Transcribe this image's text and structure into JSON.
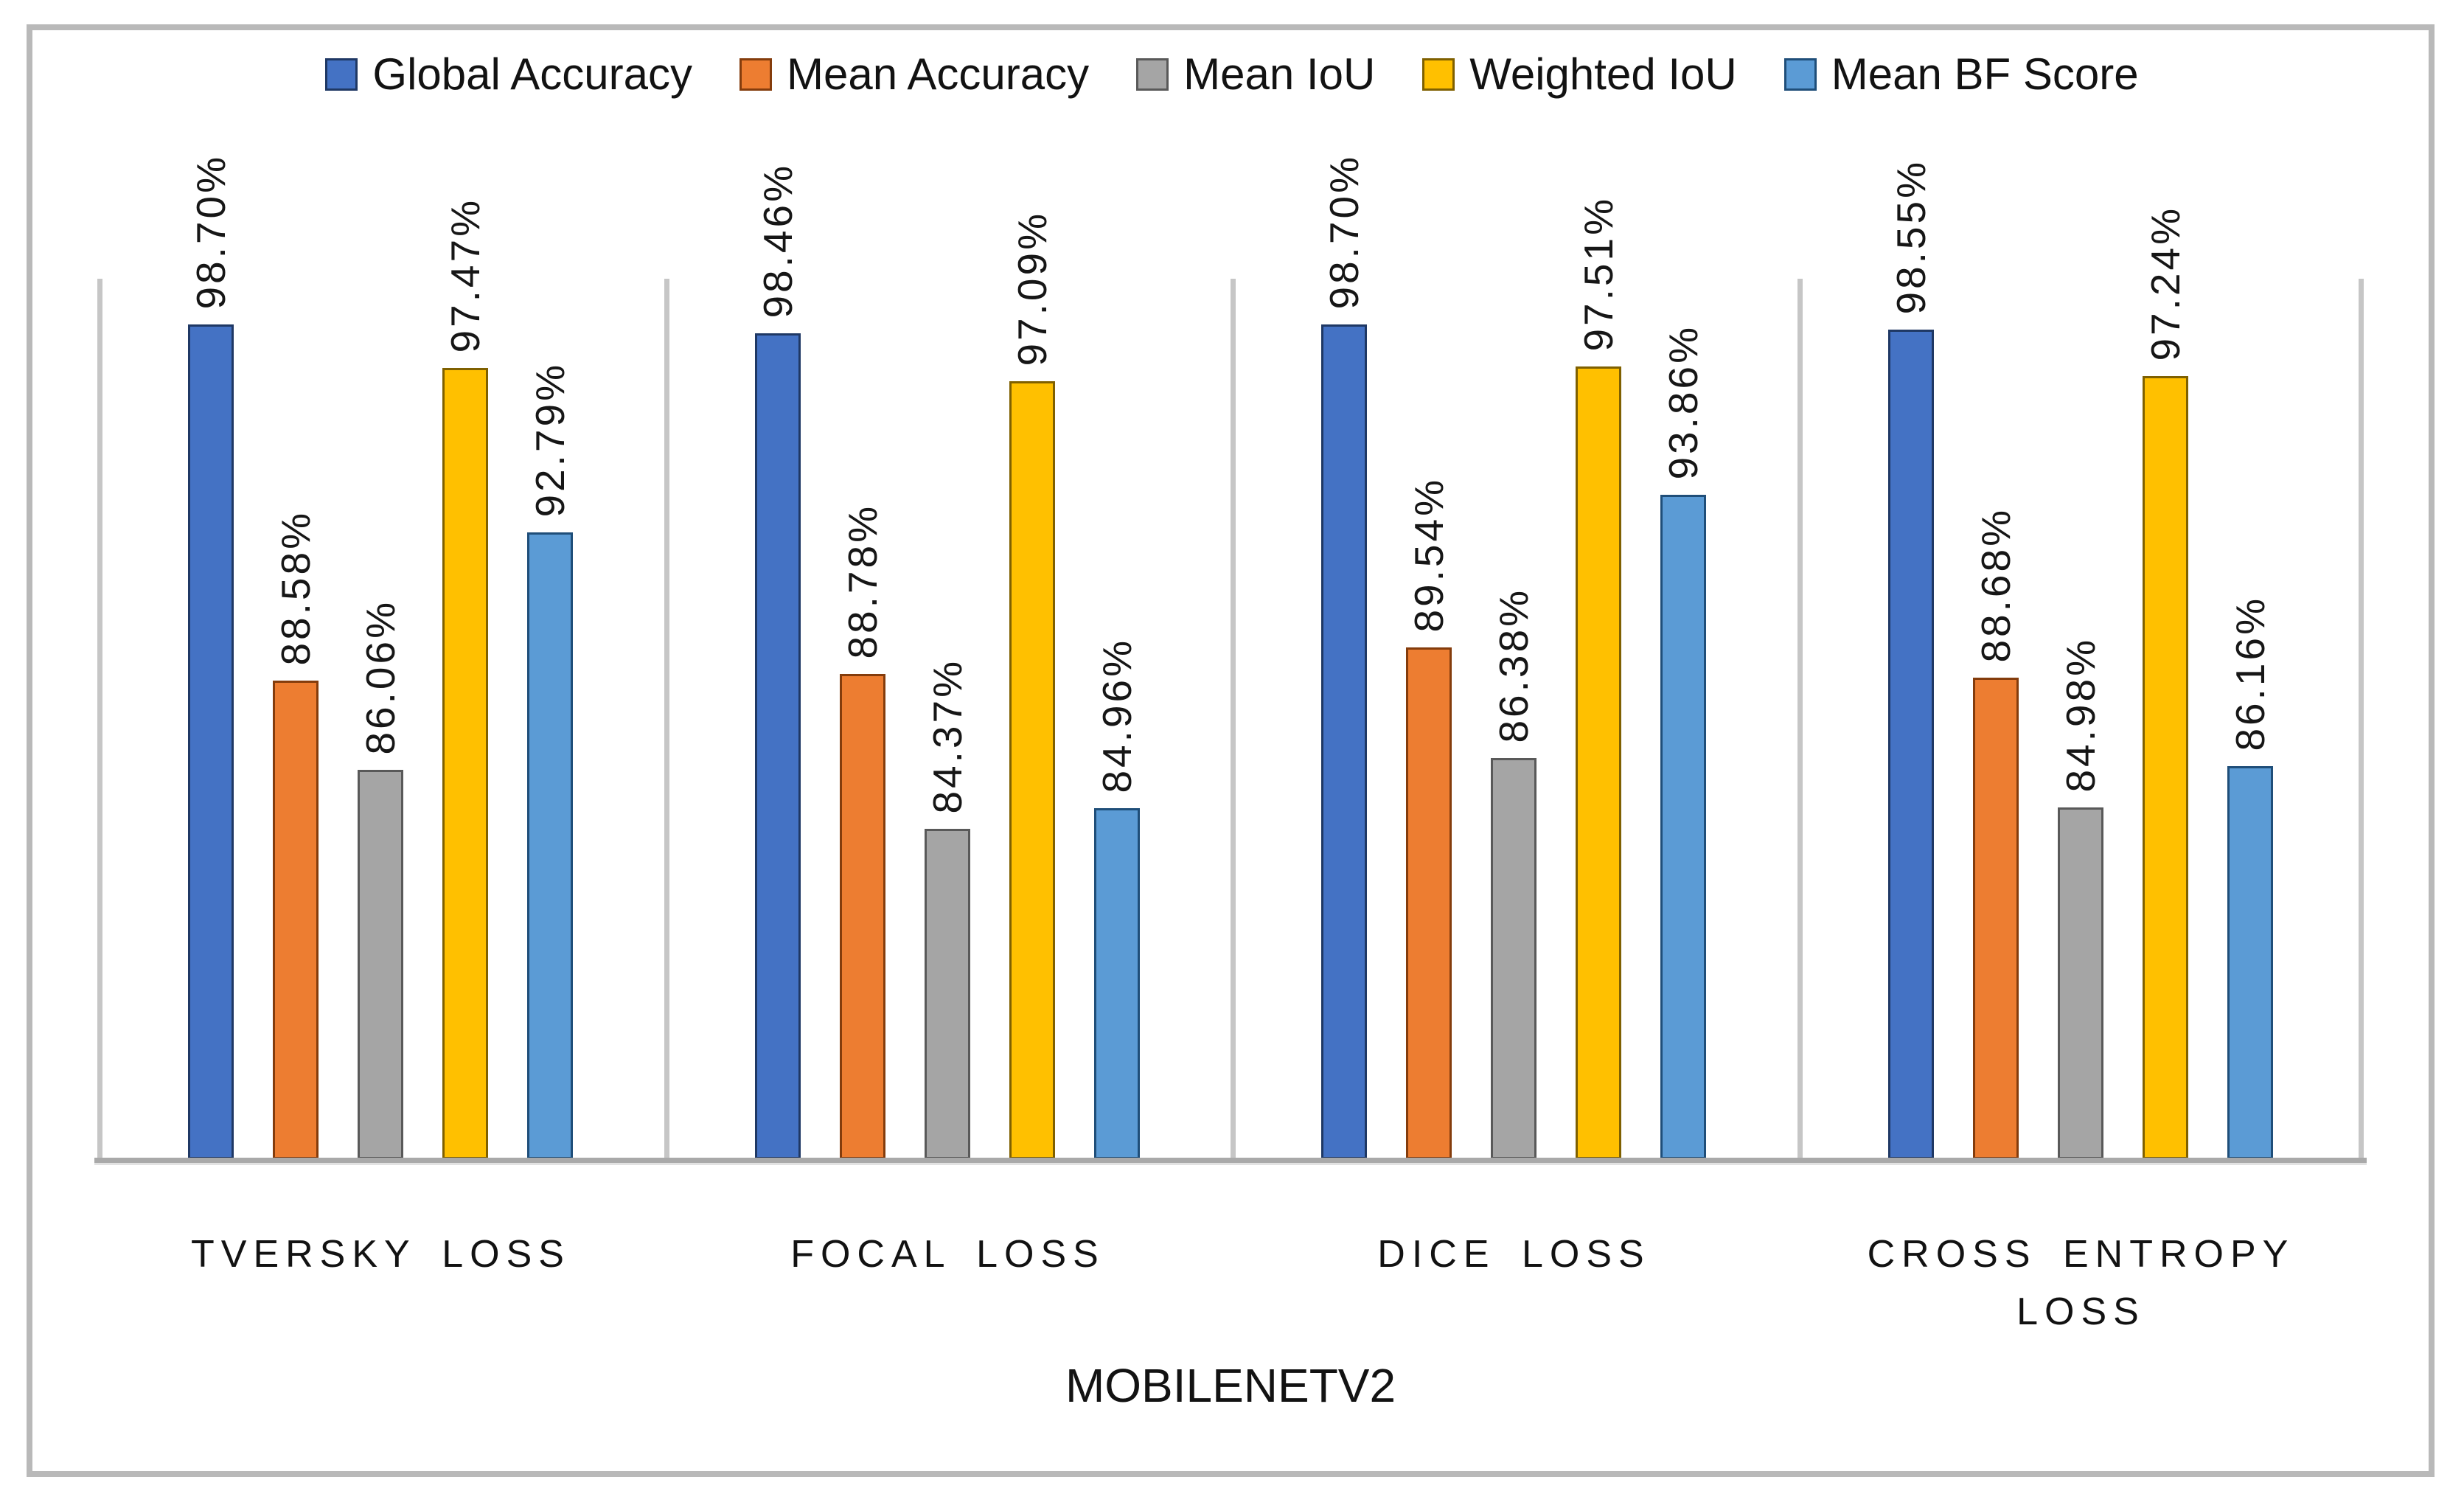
{
  "chart_data": {
    "type": "bar",
    "title": "",
    "categories": [
      "TVERSKY LOSS",
      "FOCAL LOSS",
      "DICE LOSS",
      "CROSS ENTROPY LOSS"
    ],
    "series": [
      {
        "name": "Global Accuracy",
        "color": "#4472C4",
        "border_color": "#1F3864",
        "values": [
          98.7,
          98.46,
          98.7,
          98.55
        ],
        "labels": [
          "98.70%",
          "98.46%",
          "98.70%",
          "98.55%"
        ]
      },
      {
        "name": "Mean Accuracy",
        "color": "#ED7D31",
        "border_color": "#843C0C",
        "values": [
          88.58,
          88.78,
          89.54,
          88.68
        ],
        "labels": [
          "88.58%",
          "88.78%",
          "89.54%",
          "88.68%"
        ]
      },
      {
        "name": "Mean IoU",
        "color": "#A5A5A5",
        "border_color": "#595959",
        "values": [
          86.06,
          84.37,
          86.38,
          84.98
        ],
        "labels": [
          "86.06%",
          "84.37%",
          "86.38%",
          "84.98%"
        ]
      },
      {
        "name": "Weighted IoU",
        "color": "#FFC000",
        "border_color": "#7F6000",
        "values": [
          97.47,
          97.09,
          97.51,
          97.24
        ],
        "labels": [
          "97.47%",
          "97.09%",
          "97.51%",
          "97.24%"
        ]
      },
      {
        "name": "Mean BF Score",
        "color": "#5B9BD5",
        "border_color": "#1F4E79",
        "values": [
          92.79,
          84.96,
          93.86,
          86.16
        ],
        "labels": [
          "92.79%",
          "84.96%",
          "93.86%",
          "86.16%"
        ]
      }
    ],
    "xlabel": "MOBILENETV2",
    "ylabel": "",
    "axis_min": 75,
    "axis_max": 100,
    "grid": false,
    "legend_position": "top",
    "axis_line_color": "#a9a9a9",
    "separator_line_color": "#c6c6c6"
  }
}
